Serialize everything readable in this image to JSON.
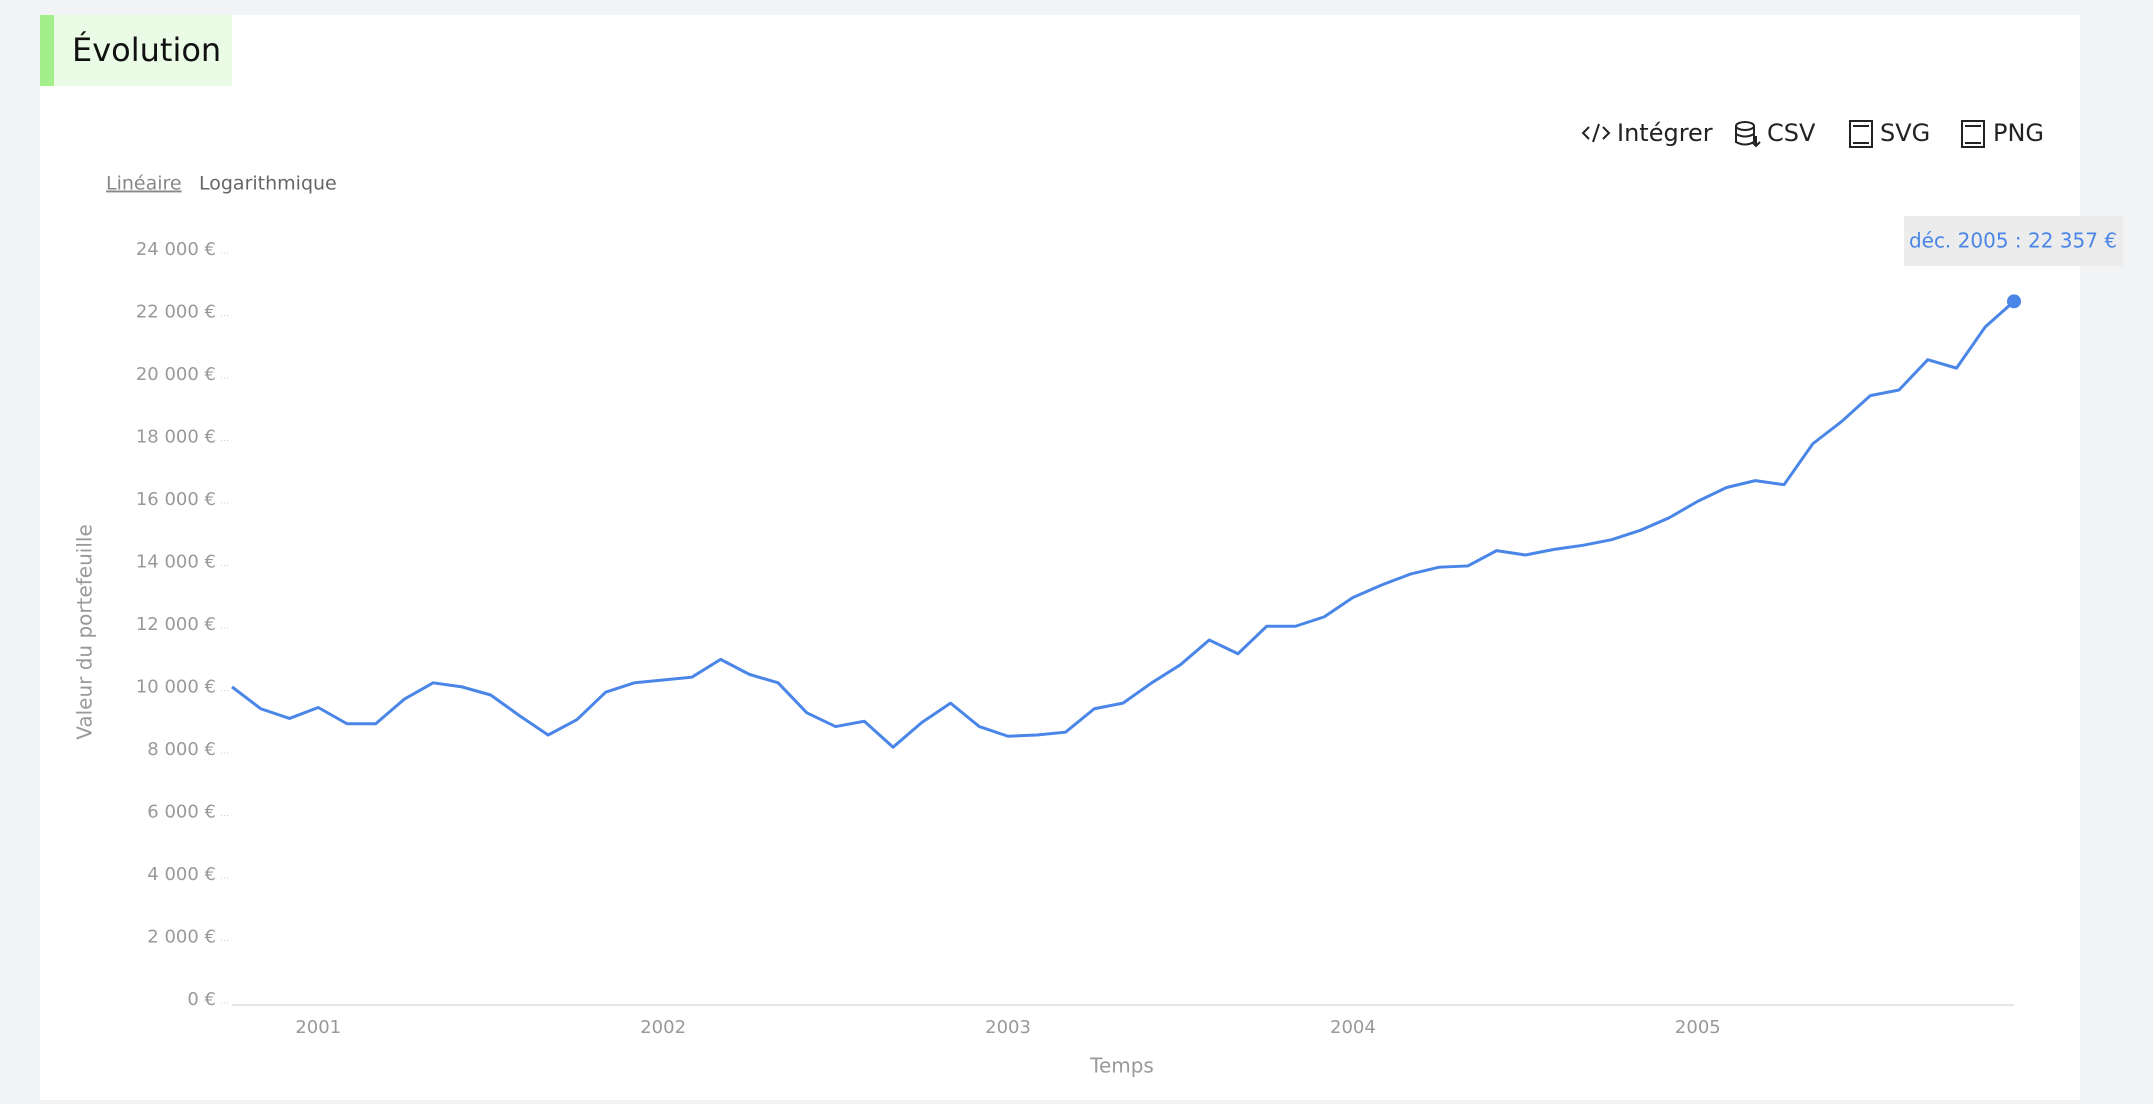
{
  "header": {
    "title": "Évolution"
  },
  "toolbar": {
    "buttons": [
      "Intégrer",
      "CSV",
      "SVG",
      "PNG"
    ]
  },
  "scale_toggle": {
    "options": [
      "Linéaire",
      "Logarithmique"
    ]
  },
  "chart_data": {
    "type": "line",
    "y_label": "Valeur du portefeuille",
    "x_label": "Temps",
    "tooltip": "déc. 2005 : 22 357 €",
    "color": "#4a86e8",
    "log_scale": false,
    "grid": false,
    "x": [
      "2000-10",
      "2000-11",
      "2000-12",
      "2001-01",
      "2001-02",
      "2001-03",
      "2001-04",
      "2001-05",
      "2001-06",
      "2001-07",
      "2001-08",
      "2001-09",
      "2001-10",
      "2001-11",
      "2001-12",
      "2002-01",
      "2002-02",
      "2002-03",
      "2002-04",
      "2002-05",
      "2002-06",
      "2002-07",
      "2002-08",
      "2002-09",
      "2002-10",
      "2002-11",
      "2002-12",
      "2003-01",
      "2003-02",
      "2003-03",
      "2003-04",
      "2003-05",
      "2003-06",
      "2003-07",
      "2003-08",
      "2003-09",
      "2003-10",
      "2003-11",
      "2003-12",
      "2004-01",
      "2004-02",
      "2004-03",
      "2004-04",
      "2004-05",
      "2004-06",
      "2004-07",
      "2004-08",
      "2004-09",
      "2004-10",
      "2004-11",
      "2004-12",
      "2005-01",
      "2005-02",
      "2005-03",
      "2005-04",
      "2005-05",
      "2005-06",
      "2005-07",
      "2005-08",
      "2005-09",
      "2005-10",
      "2005-11",
      "2005-12"
    ],
    "values": [
      10020,
      9320,
      9010,
      9360,
      8840,
      8840,
      9630,
      10150,
      10020,
      9760,
      9100,
      8480,
      8970,
      9850,
      10150,
      10240,
      10330,
      10900,
      10420,
      10150,
      9190,
      8750,
      8920,
      8090,
      8880,
      9500,
      8750,
      8440,
      8480,
      8570,
      9320,
      9500,
      10150,
      10730,
      11520,
      11080,
      11960,
      11960,
      12260,
      12880,
      13280,
      13630,
      13850,
      13890,
      14380,
      14240,
      14420,
      14550,
      14730,
      15030,
      15430,
      15960,
      16400,
      16620,
      16490,
      17800,
      18510,
      19340,
      19520,
      20490,
      20220,
      21540,
      22357
    ],
    "xlim": [
      "2000-10",
      "2005-12"
    ],
    "xticks": [
      2001,
      2002,
      2003,
      2004,
      2005
    ],
    "ylim": [
      0,
      24000
    ],
    "yticks": [
      {
        "value": 0,
        "label": "0 €"
      },
      {
        "value": 2000,
        "label": "2 000 €"
      },
      {
        "value": 4000,
        "label": "4 000 €"
      },
      {
        "value": 6000,
        "label": "6 000 €"
      },
      {
        "value": 8000,
        "label": "8 000 €"
      },
      {
        "value": 10000,
        "label": "10 000 €"
      },
      {
        "value": 12000,
        "label": "12 000 €"
      },
      {
        "value": 14000,
        "label": "14 000 €"
      },
      {
        "value": 16000,
        "label": "16 000 €"
      },
      {
        "value": 18000,
        "label": "18 000 €"
      },
      {
        "value": 20000,
        "label": "20 000 €"
      },
      {
        "value": 22000,
        "label": "22 000 €"
      },
      {
        "value": 24000,
        "label": "24 000 €"
      }
    ]
  }
}
